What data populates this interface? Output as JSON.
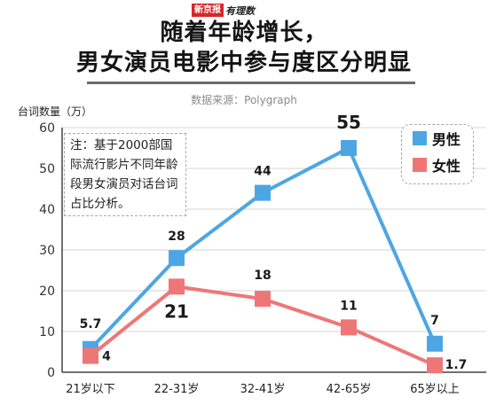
{
  "logo": {
    "brand_red": "新京报",
    "brand_script": "有理数"
  },
  "chart_data": {
    "type": "line",
    "title_line1": "随着年龄增长，",
    "title_line2": "男女演员电影中参与度区分明显",
    "source": "数据来源：Polygraph",
    "ylabel": "台词数量（万）",
    "xlabel": "",
    "ylim": [
      0,
      60
    ],
    "yticks": [
      0,
      10,
      20,
      30,
      40,
      50,
      60
    ],
    "grid": true,
    "legend_position": "top-right",
    "categories": [
      "21岁以下",
      "22-31岁",
      "32-41岁",
      "42-65岁",
      "65岁以上"
    ],
    "series": [
      {
        "name": "男性",
        "color": "#4da6e4",
        "values": [
          5.7,
          28,
          44,
          55,
          7
        ],
        "labels": [
          "5.7",
          "28",
          "44",
          "55",
          "7"
        ]
      },
      {
        "name": "女性",
        "color": "#ef7677",
        "values": [
          4,
          21,
          18,
          11,
          1.7
        ],
        "labels": [
          "4",
          "21",
          "18",
          "11",
          "1.7"
        ]
      }
    ],
    "note": "注：基于2000部国际流行影片不同年龄段男女演员对话台词占比分析。"
  }
}
